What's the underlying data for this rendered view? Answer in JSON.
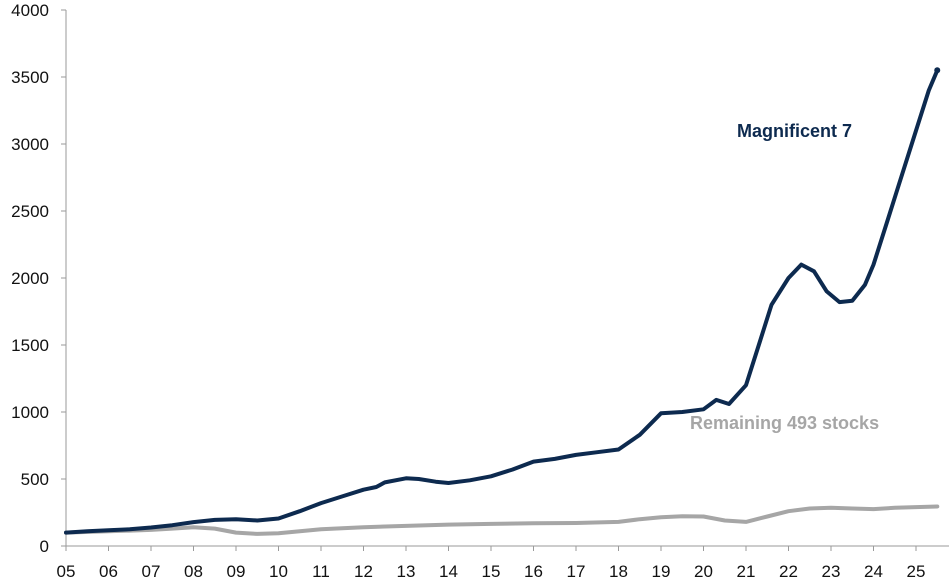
{
  "chart_data": {
    "type": "line",
    "title": "",
    "xlabel": "",
    "ylabel": "",
    "xlim": [
      5,
      25.5
    ],
    "ylim": [
      0,
      4000
    ],
    "grid": false,
    "x_tick_labels": [
      "05",
      "06",
      "07",
      "08",
      "09",
      "10",
      "11",
      "12",
      "13",
      "14",
      "15",
      "16",
      "17",
      "18",
      "19",
      "20",
      "21",
      "22",
      "23",
      "24",
      "25"
    ],
    "y_tick_labels": [
      "0",
      "500",
      "1000",
      "1500",
      "2000",
      "2500",
      "3000",
      "3500",
      "4000"
    ],
    "series": [
      {
        "name": "Magnificent 7",
        "color": "#0d2a4f",
        "x": [
          5,
          5.5,
          6,
          6.5,
          7,
          7.5,
          8,
          8.5,
          9,
          9.5,
          10,
          10.5,
          11,
          11.5,
          12,
          12.3,
          12.5,
          13,
          13.3,
          13.7,
          14,
          14.5,
          15,
          15.5,
          16,
          16.5,
          17,
          17.5,
          18,
          18.5,
          19,
          19.5,
          20,
          20.3,
          20.6,
          21,
          21.3,
          21.6,
          22,
          22.3,
          22.6,
          22.9,
          23.2,
          23.5,
          23.8,
          24,
          24.3,
          24.6,
          25,
          25.3,
          25.5
        ],
        "values": [
          100,
          110,
          118,
          125,
          138,
          155,
          178,
          195,
          200,
          190,
          205,
          260,
          320,
          370,
          420,
          440,
          475,
          505,
          500,
          480,
          470,
          490,
          520,
          570,
          630,
          650,
          680,
          700,
          720,
          830,
          990,
          1000,
          1020,
          1090,
          1060,
          1200,
          1500,
          1800,
          2000,
          2100,
          2050,
          1900,
          1820,
          1830,
          1950,
          2100,
          2400,
          2700,
          3100,
          3400,
          3550
        ]
      },
      {
        "name": "Remaining 493 stocks",
        "color": "#a6a6a6",
        "x": [
          5,
          6,
          7,
          7.5,
          8,
          8.5,
          9,
          9.5,
          10,
          10.5,
          11,
          12,
          13,
          14,
          15,
          16,
          17,
          18,
          18.5,
          19,
          19.5,
          20,
          20.5,
          21,
          21.5,
          22,
          22.5,
          23,
          23.5,
          24,
          24.5,
          25,
          25.5
        ],
        "values": [
          100,
          110,
          120,
          130,
          140,
          130,
          100,
          90,
          95,
          110,
          125,
          140,
          150,
          160,
          165,
          170,
          172,
          180,
          200,
          215,
          222,
          220,
          190,
          180,
          220,
          260,
          280,
          285,
          280,
          275,
          285,
          290,
          295
        ]
      }
    ],
    "annotations": [
      {
        "text": "Magnificent 7",
        "series": 0
      },
      {
        "text": "Remaining 493 stocks",
        "series": 1
      }
    ]
  }
}
